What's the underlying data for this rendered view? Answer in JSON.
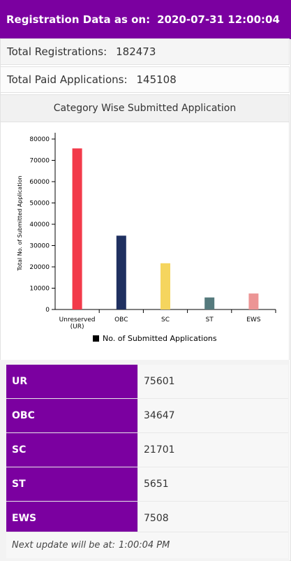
{
  "header": {
    "label": "Registration Data as on:",
    "datetime": "2020-07-31 12:00:04"
  },
  "summary": {
    "total_registrations_label": "Total Registrations:",
    "total_registrations_value": "182473",
    "total_paid_label": "Total Paid Applications:",
    "total_paid_value": "145108"
  },
  "chart_section_title": "Category Wise Submitted Application",
  "chart_data": {
    "type": "bar",
    "categories": [
      "Unreserved (UR)",
      "OBC",
      "SC",
      "ST",
      "EWS"
    ],
    "category_lines": [
      [
        "Unreserved",
        "(UR)"
      ],
      [
        "OBC"
      ],
      [
        "SC"
      ],
      [
        "ST"
      ],
      [
        "EWS"
      ]
    ],
    "series": [
      {
        "name": "No. of Submitted Applications",
        "values": [
          75601,
          34647,
          21701,
          5651,
          7508
        ]
      }
    ],
    "colors": [
      "#f23a4a",
      "#1f3060",
      "#f5d55e",
      "#557a7d",
      "#ec9595"
    ],
    "legend_color": "#000000",
    "ylabel": "Total No. of Submitted Application",
    "xlabel": "",
    "ylim": [
      0,
      80000
    ],
    "yticks": [
      0,
      10000,
      20000,
      30000,
      40000,
      50000,
      60000,
      70000,
      80000
    ],
    "grid": false,
    "legend_position": "bottom"
  },
  "table": {
    "rows": [
      {
        "key": "UR",
        "value": "75601"
      },
      {
        "key": "OBC",
        "value": "34647"
      },
      {
        "key": "SC",
        "value": "21701"
      },
      {
        "key": "ST",
        "value": "5651"
      },
      {
        "key": "EWS",
        "value": "7508"
      }
    ]
  },
  "footer": {
    "label": "Next update will be at:",
    "time": "1:00:04 PM"
  },
  "theme": {
    "accent": "#7b00a0"
  }
}
